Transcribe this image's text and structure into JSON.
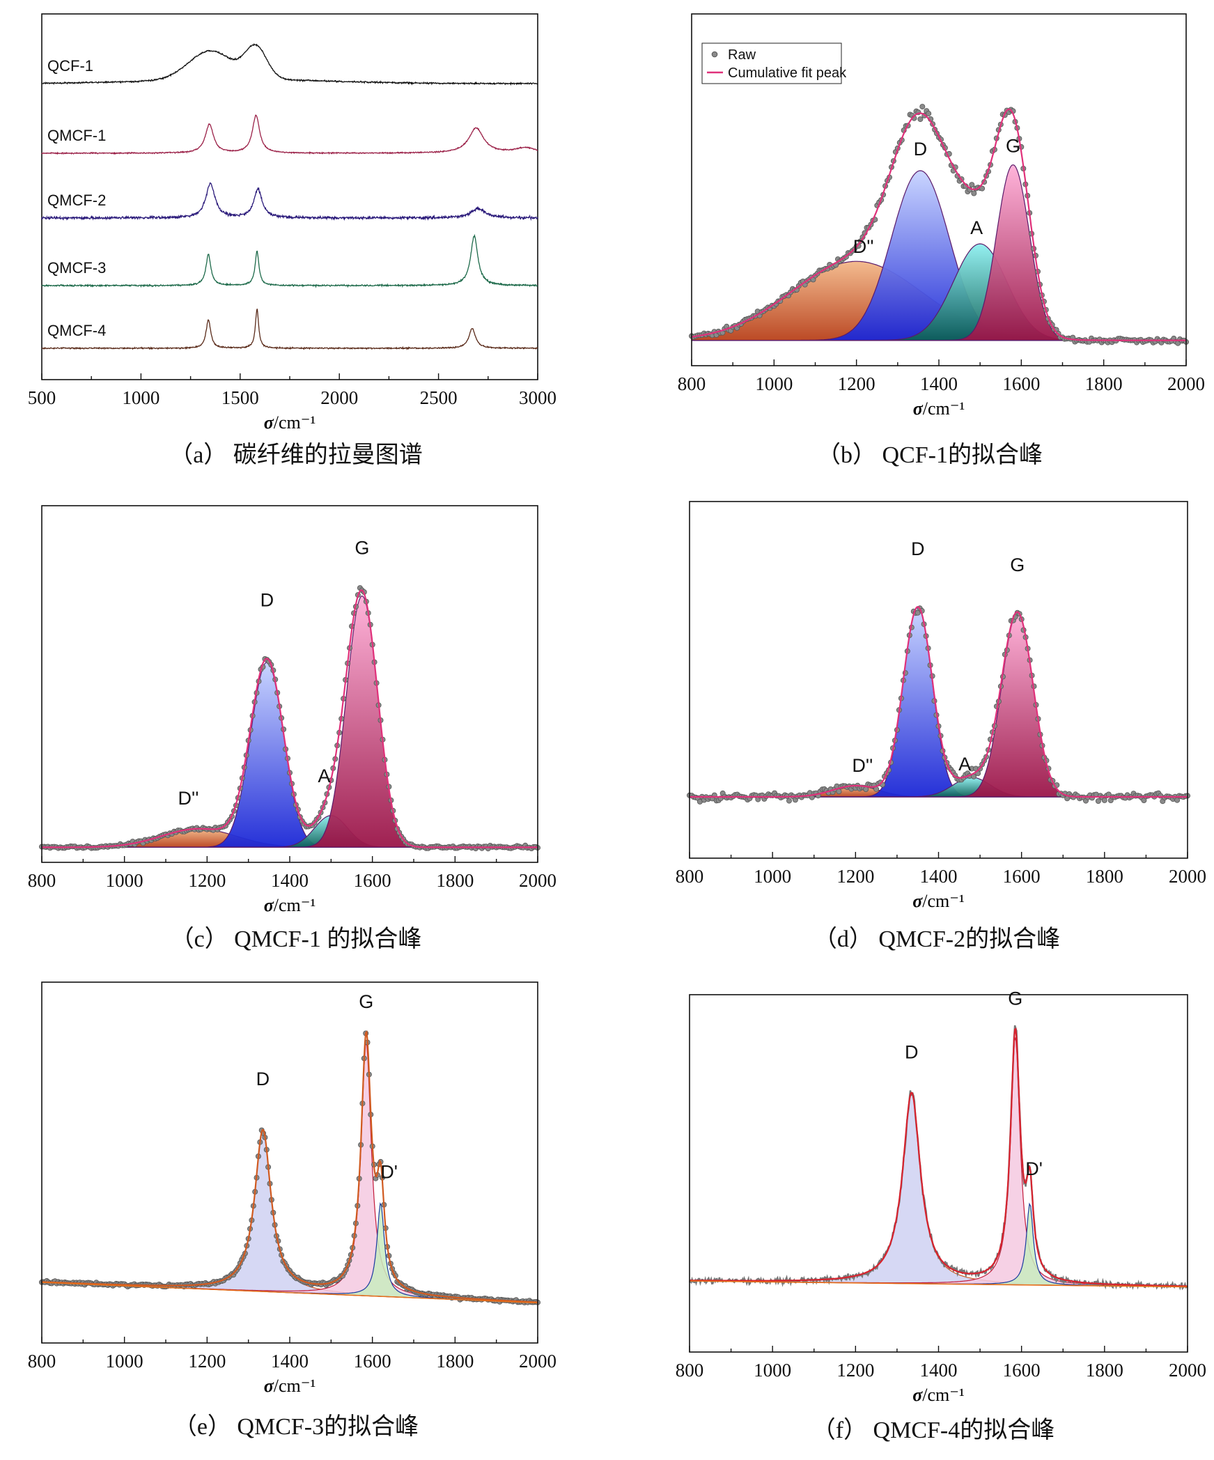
{
  "captions": {
    "a": "（a） 碳纤维的拉曼图谱",
    "b": "（b） QCF-1的拟合峰",
    "c": "（c） QMCF-1 的拟合峰",
    "d": "（d） QMCF-2的拟合峰",
    "e": "（e） QMCF-3的拟合峰",
    "f": "（f） QMCF-4的拟合峰"
  },
  "chart_data": [
    {
      "id": "a",
      "type": "line",
      "title": "",
      "xlabel": "σ/cm⁻¹",
      "ylabel": "",
      "xlim": [
        500,
        3000
      ],
      "x_ticks": [
        500,
        1000,
        1500,
        2000,
        2500,
        3000
      ],
      "grid": false,
      "series": [
        {
          "name": "QCF-1",
          "color": "#111111",
          "peaks": [
            {
              "center": 1350,
              "height": 0.55,
              "width": 110
            },
            {
              "center": 1580,
              "height": 0.6,
              "width": 55
            }
          ]
        },
        {
          "name": "QMCF-1",
          "color": "#9b2148",
          "peaks": [
            {
              "center": 1345,
              "height": 0.55,
              "width": 25
            },
            {
              "center": 1580,
              "height": 0.72,
              "width": 22
            },
            {
              "center": 2690,
              "height": 0.48,
              "width": 45
            },
            {
              "center": 2940,
              "height": 0.1,
              "width": 60
            }
          ]
        },
        {
          "name": "QMCF-2",
          "color": "#2a1a7a",
          "peaks": [
            {
              "center": 1350,
              "height": 0.65,
              "width": 28
            },
            {
              "center": 1590,
              "height": 0.55,
              "width": 25
            },
            {
              "center": 2700,
              "height": 0.18,
              "width": 45
            }
          ]
        },
        {
          "name": "QMCF-3",
          "color": "#1d6a4a",
          "peaks": [
            {
              "center": 1340,
              "height": 0.6,
              "width": 15
            },
            {
              "center": 1585,
              "height": 0.65,
              "width": 12
            },
            {
              "center": 2680,
              "height": 0.95,
              "width": 22
            }
          ]
        },
        {
          "name": "QMCF-4",
          "color": "#5a2b1a",
          "peaks": [
            {
              "center": 1340,
              "height": 0.55,
              "width": 14
            },
            {
              "center": 1585,
              "height": 0.75,
              "width": 10
            },
            {
              "center": 2670,
              "height": 0.38,
              "width": 20
            }
          ]
        }
      ]
    },
    {
      "id": "b",
      "type": "area",
      "title": "",
      "xlabel": "σ/cm⁻¹",
      "xlim": [
        800,
        2000
      ],
      "x_ticks": [
        800,
        1000,
        1200,
        1400,
        1600,
        1800,
        2000
      ],
      "legend": {
        "position": "top-left",
        "entries": [
          "Raw",
          "Cumulative fit peak"
        ]
      },
      "baseline": 0.02,
      "noise": 0.012,
      "peaks": [
        {
          "label": "D''",
          "center": 1200,
          "height": 0.27,
          "width": 160
        },
        {
          "label": "D",
          "center": 1355,
          "height": 0.58,
          "width": 70
        },
        {
          "label": "A",
          "center": 1500,
          "height": 0.33,
          "width": 65
        },
        {
          "label": "G",
          "center": 1580,
          "height": 0.6,
          "width": 40
        }
      ]
    },
    {
      "id": "c",
      "type": "area",
      "title": "",
      "xlabel": "σ/cm⁻¹",
      "xlim": [
        800,
        2000
      ],
      "x_ticks": [
        800,
        1000,
        1200,
        1400,
        1600,
        1800,
        2000
      ],
      "baseline": 0.02,
      "noise": 0.008,
      "peaks": [
        {
          "label": "D''",
          "center": 1180,
          "height": 0.07,
          "width": 90
        },
        {
          "label": "D",
          "center": 1345,
          "height": 0.7,
          "width": 40
        },
        {
          "label": "A",
          "center": 1500,
          "height": 0.12,
          "width": 40
        },
        {
          "label": "G",
          "center": 1575,
          "height": 0.95,
          "width": 38
        }
      ]
    },
    {
      "id": "d",
      "type": "area",
      "title": "",
      "xlabel": "σ/cm⁻¹",
      "xlim": [
        800,
        2000
      ],
      "x_ticks": [
        800,
        1000,
        1200,
        1400,
        1600,
        1800,
        2000
      ],
      "baseline": 0.12,
      "noise": 0.02,
      "peaks": [
        {
          "label": "D''",
          "center": 1200,
          "height": 0.04,
          "width": 55
        },
        {
          "label": "D",
          "center": 1350,
          "height": 0.68,
          "width": 35
        },
        {
          "label": "A",
          "center": 1480,
          "height": 0.07,
          "width": 45
        },
        {
          "label": "G",
          "center": 1590,
          "height": 0.66,
          "width": 38
        }
      ]
    },
    {
      "id": "e",
      "type": "area",
      "title": "",
      "xlabel": "σ/cm⁻¹",
      "xlim": [
        800,
        2000
      ],
      "x_ticks": [
        800,
        1000,
        1200,
        1400,
        1600,
        1800,
        2000
      ],
      "baseline": 0.1,
      "noise": 0.007,
      "peaks": [
        {
          "label": "D",
          "center": 1335,
          "height": 0.55,
          "width": 24
        },
        {
          "label": "G",
          "center": 1585,
          "height": 0.87,
          "width": 15
        },
        {
          "label": "D'",
          "center": 1620,
          "height": 0.32,
          "width": 11
        }
      ]
    },
    {
      "id": "f",
      "type": "area",
      "title": "",
      "xlabel": "σ/cm⁻¹",
      "xlim": [
        800,
        2000
      ],
      "x_ticks": [
        800,
        1000,
        1200,
        1400,
        1600,
        1800,
        2000
      ],
      "baseline": 0.1,
      "noise": 0.014,
      "peaks": [
        {
          "label": "D",
          "center": 1335,
          "height": 0.65,
          "width": 26
        },
        {
          "label": "G",
          "center": 1585,
          "height": 0.85,
          "width": 14
        },
        {
          "label": "D'",
          "center": 1620,
          "height": 0.28,
          "width": 10
        }
      ]
    }
  ]
}
